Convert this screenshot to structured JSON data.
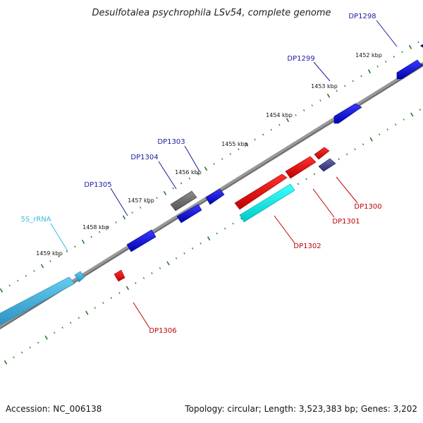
{
  "title": "Desulfotalea psychrophila LSv54, complete genome",
  "footer": {
    "accession": "Accession: NC_006138",
    "summary": "Topology: circular; Length: 3,523,383 bp; Genes: 3,202"
  },
  "colors": {
    "backbone": "#8a8a8a",
    "tick": "#2a7a2a",
    "label_forward": "#1a1aa0",
    "label_reverse": "#c00000",
    "label_rrna": "#33bbdd"
  },
  "scale_labels": [
    "1452 kbp",
    "1453 kbp",
    "1454 kbp",
    "1455 kbp",
    "1456 kbp",
    "1457 kbp",
    "1458 kbp",
    "1459 kbp"
  ],
  "gene_labels": [
    {
      "text": "DP1298",
      "color": "label_forward"
    },
    {
      "text": "DP1299",
      "color": "label_forward"
    },
    {
      "text": "DP1300",
      "color": "label_reverse"
    },
    {
      "text": "DP1301",
      "color": "label_reverse"
    },
    {
      "text": "DP1302",
      "color": "label_reverse"
    },
    {
      "text": "DP1303",
      "color": "label_forward"
    },
    {
      "text": "DP1304",
      "color": "label_forward"
    },
    {
      "text": "DP1305",
      "color": "label_forward"
    },
    {
      "text": "DP1306",
      "color": "label_reverse"
    },
    {
      "text": "5S_rRNA",
      "color": "label_rrna"
    }
  ]
}
